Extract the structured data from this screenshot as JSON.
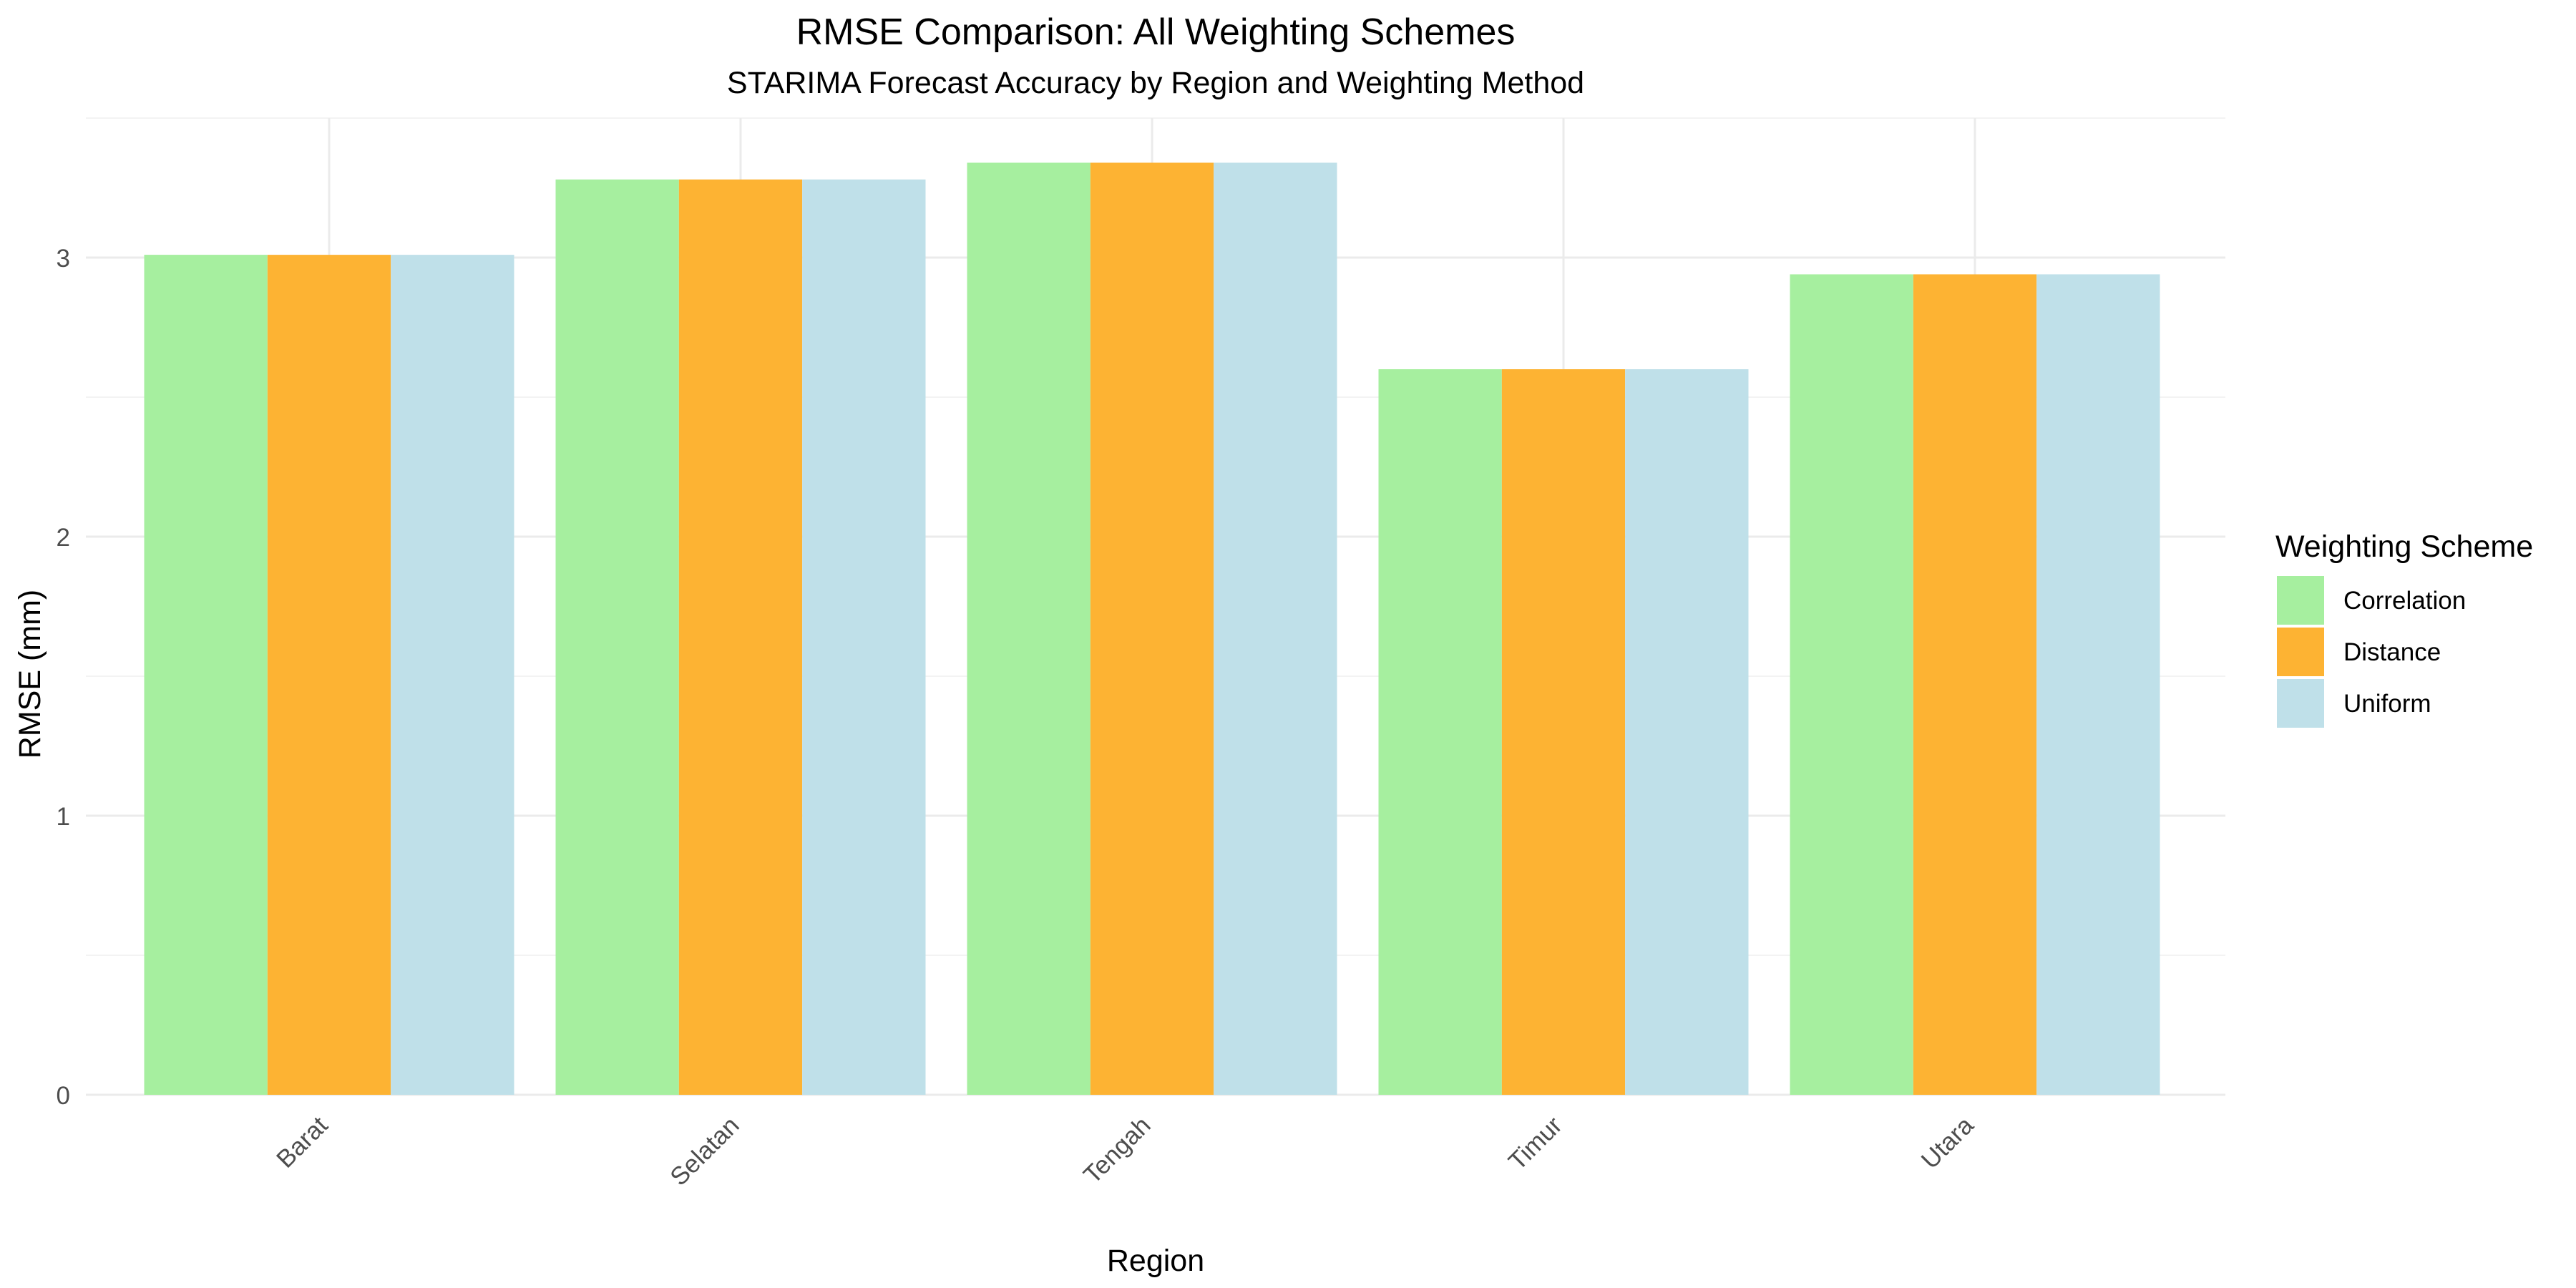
{
  "chart_data": {
    "type": "bar",
    "title": "RMSE Comparison: All Weighting Schemes",
    "subtitle": "STARIMA Forecast Accuracy by Region and Weighting Method",
    "xlabel": "Region",
    "ylabel": "RMSE (mm)",
    "categories": [
      "Barat",
      "Selatan",
      "Tengah",
      "Timur",
      "Utara"
    ],
    "ylim": [
      0,
      3.5
    ],
    "yticks": [
      "0",
      "1",
      "2",
      "3"
    ],
    "grid": true,
    "legend": {
      "title": "Weighting Scheme",
      "placement": "right"
    },
    "series": [
      {
        "name": "Correlation",
        "color": "#a6ef9f",
        "values": [
          3.01,
          3.28,
          3.34,
          2.6,
          2.94
        ]
      },
      {
        "name": "Distance",
        "color": "#fdb333",
        "values": [
          3.01,
          3.28,
          3.34,
          2.6,
          2.94
        ]
      },
      {
        "name": "Uniform",
        "color": "#bfe0e9",
        "values": [
          3.01,
          3.28,
          3.34,
          2.6,
          2.94
        ]
      }
    ]
  }
}
